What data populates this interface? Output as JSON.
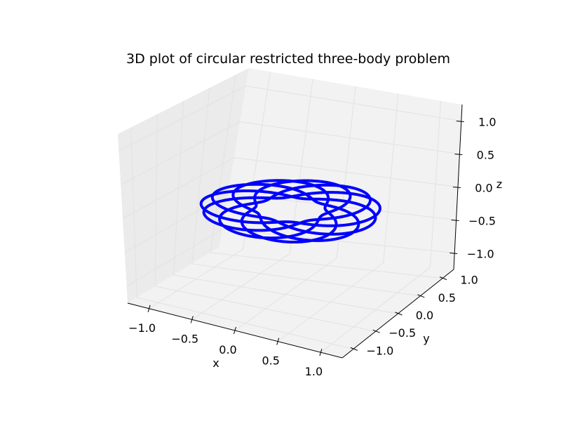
{
  "chart_data": {
    "type": "line",
    "projection": "3d",
    "title": "3D plot of circular restricted three-body problem",
    "xlabel": "x",
    "ylabel": "y",
    "zlabel": "z",
    "xlim": [
      -1.25,
      1.25
    ],
    "ylim": [
      -1.25,
      1.25
    ],
    "zlim": [
      -1.25,
      1.25
    ],
    "xticks": [
      -1.0,
      -0.5,
      0.0,
      0.5,
      1.0
    ],
    "yticks": [
      -1.0,
      -0.5,
      0.0,
      0.5,
      1.0
    ],
    "zticks": [
      -1.0,
      -0.5,
      0.0,
      0.5,
      1.0
    ],
    "xtick_labels": [
      "−1.0",
      "−0.5",
      "0.0",
      "0.5",
      "1.0"
    ],
    "ytick_labels": [
      "−1.0",
      "−0.5",
      "0.0",
      "0.5",
      "1.0"
    ],
    "ztick_labels": [
      "−1.0",
      "−0.5",
      "0.0",
      "0.5",
      "1.0"
    ],
    "grid": true,
    "series": [
      {
        "color": "#0000ff",
        "trajectory": {
          "description": "planar rosette orbit in the z = 0 plane, estimated from the plot",
          "rotations": 6,
          "petals": 11,
          "radius_min": 0.35,
          "radius_max": 0.9,
          "z": 0
        }
      }
    ]
  }
}
